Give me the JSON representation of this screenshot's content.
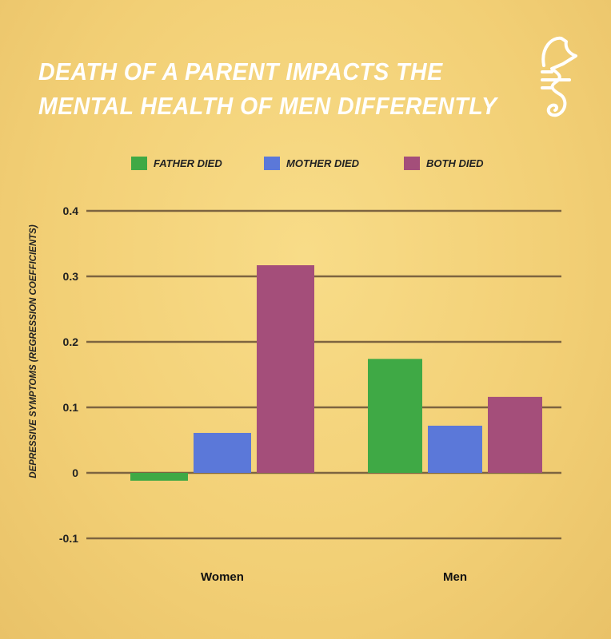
{
  "title_lines": [
    "Death of a parent impacts the",
    "mental health of men differently"
  ],
  "logo": "seahorse-logo",
  "chart_data": {
    "type": "bar",
    "title": "Death of a parent impacts the mental health of men differently",
    "categories": [
      "Women",
      "Men"
    ],
    "series": [
      {
        "name": "Father died",
        "color": "#3fa945",
        "values": [
          -0.012,
          0.174
        ]
      },
      {
        "name": "Mother died",
        "color": "#5b78d9",
        "values": [
          0.061,
          0.072
        ]
      },
      {
        "name": "Both died",
        "color": "#a44e7a",
        "values": [
          0.317,
          0.116
        ]
      }
    ],
    "xlabel": "",
    "ylabel": "Depressive symptoms (regression coefficients)",
    "ylim": [
      -0.1,
      0.4
    ],
    "yticks": [
      0.4,
      0.3,
      0.2,
      0.1,
      0,
      -0.1
    ],
    "ytick_labels": [
      "0.4",
      "0.3",
      "0.2",
      "0.1",
      "0",
      "-0.1"
    ],
    "grid": true,
    "legend": "top"
  }
}
